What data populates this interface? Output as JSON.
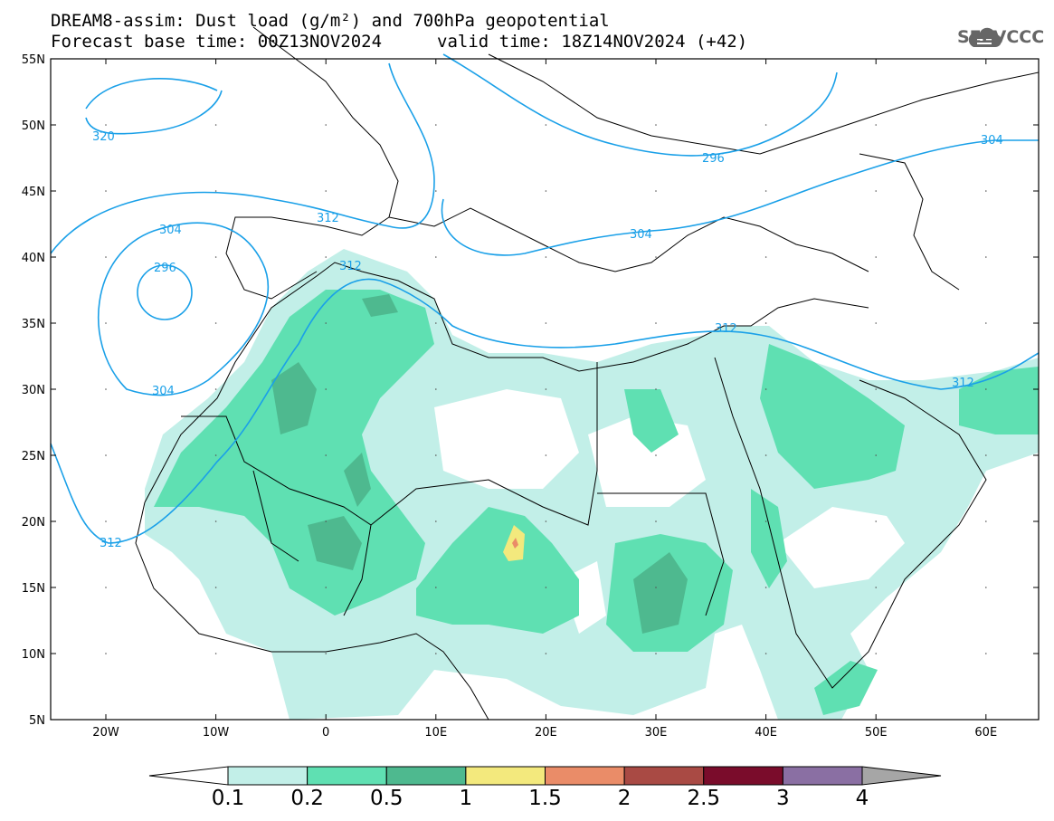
{
  "header": {
    "title_line1": "DREAM8-assim: Dust load (g/m²) and 700hPa geopotential",
    "title_line2": "Forecast base time: 00Z13NOV2024",
    "valid_time": "valid time: 18Z14NOV2024 (+42)"
  },
  "logo": {
    "text": "SEEVCCC",
    "icon": "cloud-logo-icon"
  },
  "axes": {
    "lat_labels": [
      "55N",
      "50N",
      "45N",
      "40N",
      "35N",
      "30N",
      "25N",
      "20N",
      "15N",
      "10N",
      "5N"
    ],
    "lon_labels": [
      "20W",
      "10W",
      "0",
      "10E",
      "20E",
      "30E",
      "40E",
      "50E",
      "60E"
    ]
  },
  "contour_labels": [
    "320",
    "312",
    "304",
    "296",
    "304",
    "296",
    "312",
    "304",
    "304",
    "312",
    "312",
    "312"
  ],
  "colorbar": {
    "ticks": [
      "0.1",
      "0.2",
      "0.5",
      "1",
      "1.5",
      "2",
      "2.5",
      "3",
      "4"
    ],
    "colors": [
      "#c2efe8",
      "#5fe0b2",
      "#4eb98f",
      "#f3e97d",
      "#ea8c68",
      "#a94a44",
      "#7a0c2b",
      "#8a6fa3"
    ],
    "under_color": "#ffffff",
    "over_color": "#a6a6a6"
  },
  "colors": {
    "dust_01": "#c2efe8",
    "dust_02": "#5fe0b2",
    "dust_05": "#4eb98f",
    "dust_1": "#f3e97d",
    "dust_15": "#ea8c68",
    "contour": "#1aa0e8",
    "coast": "#000000"
  }
}
